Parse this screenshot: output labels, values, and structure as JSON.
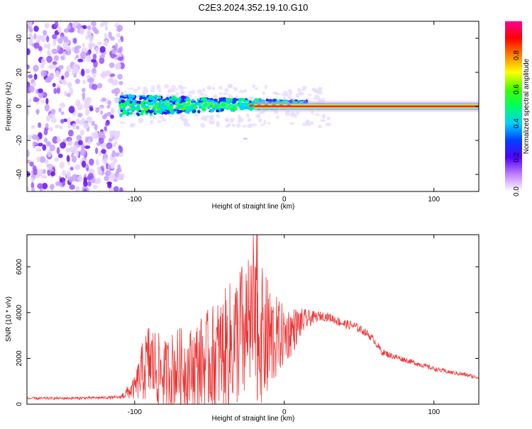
{
  "title": "C2E3.2024.352.19.10.G10",
  "chart_data": [
    {
      "type": "heatmap",
      "xlabel": "Height of straight line (km)",
      "ylabel": "Frequency (Hz)",
      "xlim": [
        -172,
        130
      ],
      "ylim": [
        -50,
        50
      ],
      "xticks": [
        -100,
        0,
        100
      ],
      "yticks": [
        -40,
        -20,
        0,
        20,
        40
      ],
      "colorbar": {
        "label": "Normalized spectral amplitude",
        "ticks": [
          0.0,
          0.2,
          0.4,
          0.6,
          0.8
        ],
        "colors": [
          "#ffffff",
          "#c080ff",
          "#5000ff",
          "#0040ff",
          "#00d0ff",
          "#00ff60",
          "#40ff00",
          "#ffff00",
          "#ff8000",
          "#ff0000",
          "#ff0090"
        ]
      },
      "regions": [
        {
          "name": "noise",
          "x": [
            -172,
            -108
          ],
          "y": [
            -50,
            50
          ],
          "level": 0.25
        },
        {
          "name": "scattered_echo",
          "x": [
            -110,
            15
          ],
          "y": [
            -8,
            8
          ],
          "level": 0.4
        },
        {
          "name": "narrow_line",
          "x": [
            0,
            130
          ],
          "y": [
            -1,
            1
          ],
          "level": 0.9
        }
      ]
    },
    {
      "type": "line",
      "xlabel": "Height of straight line (km)",
      "ylabel": "SNR (10 * v/v)",
      "xlim": [
        -172,
        130
      ],
      "ylim": [
        0,
        7400
      ],
      "xticks": [
        -100,
        0,
        100
      ],
      "yticks": [
        0,
        2000,
        4000,
        6000
      ],
      "color": "#ee3333",
      "x": [
        -172,
        -150,
        -130,
        -110,
        -100,
        -95,
        -90,
        -85,
        -80,
        -75,
        -70,
        -65,
        -60,
        -55,
        -50,
        -45,
        -40,
        -35,
        -30,
        -25,
        -20,
        -15,
        -10,
        -5,
        0,
        5,
        10,
        15,
        20,
        25,
        30,
        35,
        40,
        45,
        50,
        55,
        60,
        65,
        70,
        80,
        90,
        100,
        110,
        120,
        130
      ],
      "y": [
        250,
        260,
        270,
        300,
        700,
        1400,
        1900,
        1500,
        1300,
        1500,
        1600,
        1500,
        1700,
        1800,
        1900,
        2100,
        2300,
        2600,
        3000,
        3200,
        3300,
        3000,
        2800,
        2900,
        3000,
        3200,
        3500,
        3700,
        3800,
        3850,
        3800,
        3650,
        3500,
        3450,
        3300,
        3100,
        2800,
        2300,
        2150,
        1950,
        1750,
        1550,
        1400,
        1300,
        1150
      ],
      "spread": [
        60,
        60,
        60,
        70,
        500,
        1300,
        1900,
        1700,
        1500,
        1700,
        1800,
        1700,
        1900,
        2100,
        2300,
        2500,
        2700,
        2900,
        3100,
        3200,
        3200,
        3000,
        2600,
        1800,
        1300,
        1100,
        700,
        450,
        250,
        200,
        200,
        200,
        200,
        200,
        180,
        170,
        160,
        150,
        140,
        120,
        110,
        100,
        90,
        90,
        80
      ]
    }
  ]
}
